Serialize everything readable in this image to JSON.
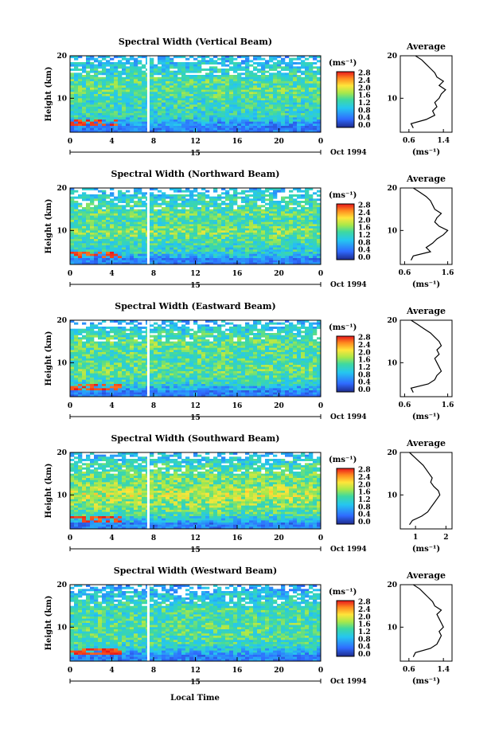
{
  "figure": {
    "x_axis_label": "Local Time",
    "date_label": "Oct 1994",
    "day_label": "15",
    "colorbar_unit": "(ms⁻¹)",
    "colorbar_ticks": [
      "2.8",
      "2.4",
      "2.0",
      "1.6",
      "1.2",
      "0.8",
      "0.4",
      "0.0"
    ],
    "profile_title": "Average",
    "profile_unit": "(ms⁻¹)",
    "y_axis_label": "Height (km)"
  },
  "chart_data": [
    {
      "type": "heatmap",
      "title": "Spectral Width (Vertical Beam)",
      "xlabel": "Local Time",
      "ylabel": "Height (km)",
      "x_ticks": [
        "0",
        "4",
        "8",
        "12",
        "16",
        "20",
        "0"
      ],
      "y_ticks": [
        "20",
        "10"
      ],
      "xlim": [
        0,
        24
      ],
      "ylim": [
        2,
        20
      ],
      "colorbar": {
        "label": "(ms⁻¹)",
        "range": [
          0,
          3.0
        ],
        "ticks": [
          "2.8",
          "2.4",
          "2.0",
          "1.6",
          "1.2",
          "0.8",
          "0.4",
          "0.0"
        ]
      },
      "data_gap_hour": 7.5,
      "profile": {
        "title": "Average",
        "xlabel": "(ms⁻¹)",
        "x_ticks": [
          "0.6",
          "1.4"
        ],
        "xlim": [
          0.4,
          1.6
        ],
        "y_ticks": [
          "20",
          "10"
        ],
        "heights": [
          3,
          4,
          5,
          6,
          7,
          8,
          9,
          10,
          11,
          12,
          13,
          14,
          15,
          16,
          17,
          18,
          19,
          20
        ],
        "values": [
          0.7,
          0.65,
          1.0,
          1.2,
          1.15,
          1.25,
          1.2,
          1.3,
          1.35,
          1.45,
          1.3,
          1.4,
          1.25,
          1.2,
          1.1,
          1.0,
          0.9,
          0.75
        ]
      }
    },
    {
      "type": "heatmap",
      "title": "Spectral Width (Northward Beam)",
      "xlabel": "Local Time",
      "ylabel": "Height (km)",
      "x_ticks": [
        "0",
        "4",
        "8",
        "12",
        "16",
        "20",
        "0"
      ],
      "y_ticks": [
        "20",
        "10"
      ],
      "xlim": [
        0,
        24
      ],
      "ylim": [
        2,
        20
      ],
      "colorbar": {
        "label": "(ms⁻¹)",
        "range": [
          0,
          3.0
        ],
        "ticks": [
          "2.8",
          "2.4",
          "2.0",
          "1.6",
          "1.2",
          "0.8",
          "0.4",
          "0.0"
        ]
      },
      "data_gap_hour": 7.5,
      "profile": {
        "title": "Average",
        "xlabel": "(ms⁻¹)",
        "x_ticks": [
          "0.6",
          "1.6"
        ],
        "xlim": [
          0.5,
          1.7
        ],
        "y_ticks": [
          "20",
          "10"
        ],
        "heights": [
          3,
          4,
          5,
          6,
          7,
          8,
          9,
          10,
          11,
          12,
          13,
          14,
          15,
          16,
          17,
          18,
          19,
          20
        ],
        "values": [
          0.75,
          0.8,
          1.2,
          1.1,
          1.25,
          1.35,
          1.5,
          1.6,
          1.4,
          1.3,
          1.35,
          1.45,
          1.3,
          1.25,
          1.2,
          1.1,
          0.95,
          0.8
        ]
      }
    },
    {
      "type": "heatmap",
      "title": "Spectral Width (Eastward Beam)",
      "xlabel": "Local Time",
      "ylabel": "Height (km)",
      "x_ticks": [
        "0",
        "4",
        "8",
        "12",
        "16",
        "20",
        "0"
      ],
      "y_ticks": [
        "20",
        "10"
      ],
      "xlim": [
        0,
        24
      ],
      "ylim": [
        2,
        20
      ],
      "colorbar": {
        "label": "(ms⁻¹)",
        "range": [
          0,
          3.0
        ],
        "ticks": [
          "2.8",
          "2.4",
          "2.0",
          "1.6",
          "1.2",
          "0.8",
          "0.4",
          "0.0"
        ]
      },
      "data_gap_hour": 7.5,
      "profile": {
        "title": "Average",
        "xlabel": "(ms⁻¹)",
        "x_ticks": [
          "0.6",
          "1.6"
        ],
        "xlim": [
          0.5,
          1.7
        ],
        "y_ticks": [
          "20",
          "10"
        ],
        "heights": [
          3,
          4,
          5,
          6,
          7,
          8,
          9,
          10,
          11,
          12,
          13,
          14,
          15,
          16,
          17,
          18,
          19,
          20
        ],
        "values": [
          0.8,
          0.75,
          1.15,
          1.3,
          1.35,
          1.45,
          1.4,
          1.35,
          1.3,
          1.4,
          1.35,
          1.45,
          1.4,
          1.3,
          1.2,
          1.05,
          0.9,
          0.75
        ]
      }
    },
    {
      "type": "heatmap",
      "title": "Spectral Width (Southward Beam)",
      "xlabel": "Local Time",
      "ylabel": "Height (km)",
      "x_ticks": [
        "0",
        "4",
        "8",
        "12",
        "16",
        "20",
        "0"
      ],
      "y_ticks": [
        "20",
        "10"
      ],
      "xlim": [
        0,
        24
      ],
      "ylim": [
        2,
        20
      ],
      "colorbar": {
        "label": "(ms⁻¹)",
        "range": [
          0,
          3.0
        ],
        "ticks": [
          "2.8",
          "2.4",
          "2.0",
          "1.6",
          "1.2",
          "0.8",
          "0.4",
          "0.0"
        ]
      },
      "data_gap_hour": 7.5,
      "profile": {
        "title": "Average",
        "xlabel": "(ms⁻¹)",
        "x_ticks": [
          "1",
          "2"
        ],
        "xlim": [
          0.5,
          2.2
        ],
        "y_ticks": [
          "20",
          "10"
        ],
        "heights": [
          3,
          4,
          5,
          6,
          7,
          8,
          9,
          10,
          11,
          12,
          13,
          14,
          15,
          16,
          17,
          18,
          19,
          20
        ],
        "values": [
          0.8,
          0.9,
          1.2,
          1.4,
          1.5,
          1.6,
          1.7,
          1.8,
          1.75,
          1.6,
          1.5,
          1.55,
          1.45,
          1.35,
          1.25,
          1.1,
          0.95,
          0.8
        ]
      }
    },
    {
      "type": "heatmap",
      "title": "Spectral Width (Westward Beam)",
      "xlabel": "Local Time",
      "ylabel": "Height (km)",
      "x_ticks": [
        "0",
        "4",
        "8",
        "12",
        "16",
        "20",
        "0"
      ],
      "y_ticks": [
        "20",
        "10"
      ],
      "xlim": [
        0,
        24
      ],
      "ylim": [
        2,
        20
      ],
      "colorbar": {
        "label": "(ms⁻¹)",
        "range": [
          0,
          3.0
        ],
        "ticks": [
          "2.8",
          "2.4",
          "2.0",
          "1.6",
          "1.2",
          "0.8",
          "0.4",
          "0.0"
        ]
      },
      "data_gap_hour": 7.5,
      "profile": {
        "title": "Average",
        "xlabel": "(ms⁻¹)",
        "x_ticks": [
          "0.6",
          "1.4"
        ],
        "xlim": [
          0.4,
          1.6
        ],
        "y_ticks": [
          "20",
          "10"
        ],
        "heights": [
          3,
          4,
          5,
          6,
          7,
          8,
          9,
          10,
          11,
          12,
          13,
          14,
          15,
          16,
          17,
          18,
          19,
          20
        ],
        "values": [
          0.7,
          0.75,
          1.1,
          1.25,
          1.3,
          1.35,
          1.3,
          1.4,
          1.35,
          1.3,
          1.25,
          1.35,
          1.2,
          1.15,
          1.05,
          0.95,
          0.85,
          0.7
        ]
      }
    }
  ]
}
